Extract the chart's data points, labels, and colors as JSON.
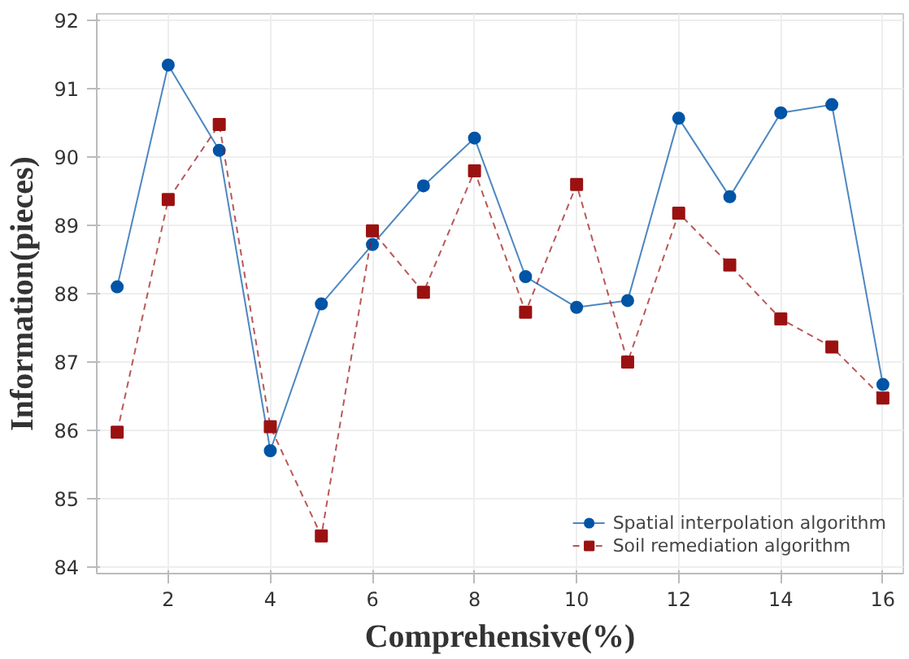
{
  "chart_data": {
    "type": "line",
    "xlabel": "Comprehensive(%)",
    "ylabel": "Information(pieces)",
    "x": [
      1,
      2,
      3,
      4,
      5,
      6,
      7,
      8,
      9,
      10,
      11,
      12,
      13,
      14,
      15,
      16
    ],
    "series": [
      {
        "name": "Spatial interpolation algorithm",
        "color": "#0054a6",
        "marker": "circle",
        "line_style": "solid",
        "values": [
          88.1,
          91.35,
          90.1,
          85.7,
          87.85,
          88.72,
          89.58,
          90.28,
          88.25,
          87.8,
          87.9,
          90.57,
          89.42,
          90.65,
          90.77,
          86.67
        ]
      },
      {
        "name": "Soil remediation algorithm",
        "color": "#9b1111",
        "marker": "square",
        "line_style": "dashed",
        "values": [
          85.97,
          89.38,
          90.48,
          86.05,
          84.45,
          88.92,
          88.02,
          89.8,
          87.73,
          89.6,
          87.0,
          89.18,
          88.42,
          87.63,
          87.22,
          86.47
        ]
      }
    ],
    "xlim": [
      0.6,
      16.4
    ],
    "ylim": [
      83.9,
      92.1
    ],
    "xticks": [
      2,
      4,
      6,
      8,
      10,
      12,
      14,
      16
    ],
    "yticks": [
      84,
      85,
      86,
      87,
      88,
      89,
      90,
      91,
      92
    ],
    "grid": true,
    "legend": "bottom right"
  }
}
